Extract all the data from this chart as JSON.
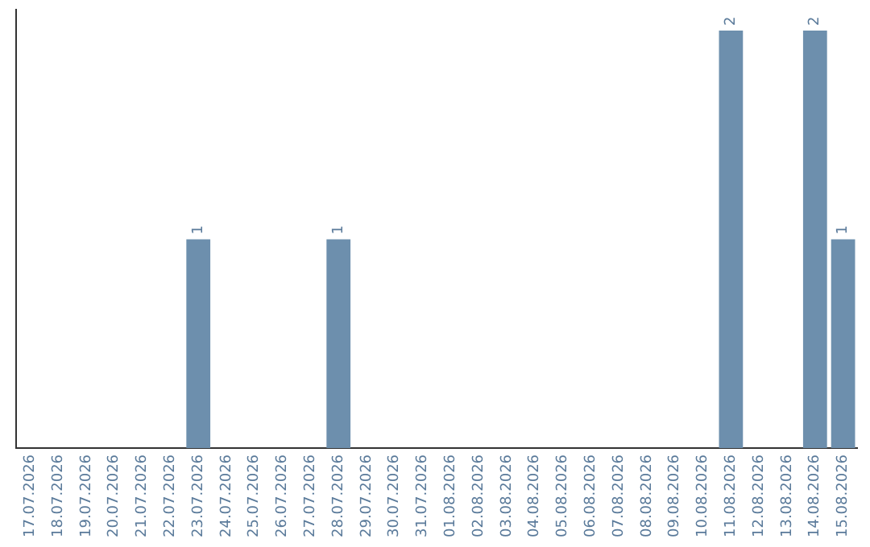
{
  "chart_data": {
    "type": "bar",
    "categories": [
      "17.07.2026",
      "18.07.2026",
      "19.07.2026",
      "20.07.2026",
      "21.07.2026",
      "22.07.2026",
      "23.07.2026",
      "24.07.2026",
      "25.07.2026",
      "26.07.2026",
      "27.07.2026",
      "28.07.2026",
      "29.07.2026",
      "30.07.2026",
      "31.07.2026",
      "01.08.2026",
      "02.08.2026",
      "03.08.2026",
      "04.08.2026",
      "05.08.2026",
      "06.08.2026",
      "07.08.2026",
      "08.08.2026",
      "09.08.2026",
      "10.08.2026",
      "11.08.2026",
      "12.08.2026",
      "13.08.2026",
      "14.08.2026",
      "15.08.2026"
    ],
    "values": [
      0,
      0,
      0,
      0,
      0,
      0,
      1,
      0,
      0,
      0,
      0,
      1,
      0,
      0,
      0,
      0,
      0,
      0,
      0,
      0,
      0,
      0,
      0,
      0,
      0,
      2,
      0,
      0,
      2,
      1
    ],
    "color": "#6d8fad",
    "ylim": [
      0,
      2.1
    ],
    "tick_labels": "x",
    "value_labels": [
      null,
      null,
      null,
      null,
      null,
      null,
      "1",
      null,
      null,
      null,
      null,
      "1",
      null,
      null,
      null,
      null,
      null,
      null,
      null,
      null,
      null,
      null,
      null,
      null,
      null,
      "2",
      null,
      null,
      "2",
      "1"
    ],
    "grid": false,
    "legend": false
  }
}
